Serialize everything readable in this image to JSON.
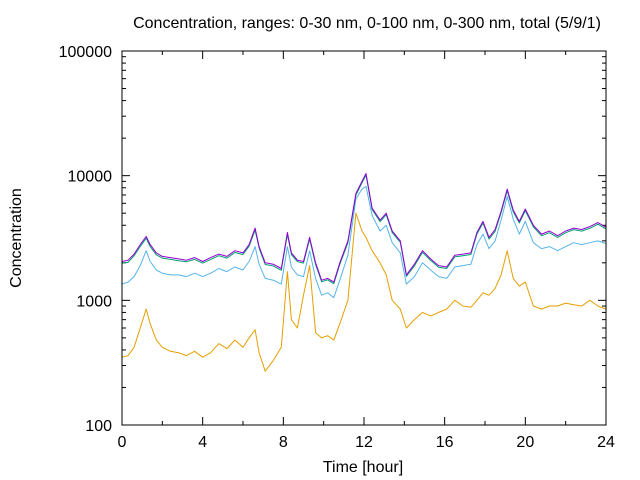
{
  "chart_data": {
    "type": "line",
    "title": "Concentration, ranges: 0-30 nm, 0-100 nm, 0-300 nm, total (5/9/1)",
    "xlabel": "Time [hour]",
    "ylabel": "Concentration",
    "xlim": [
      0,
      24
    ],
    "ylim": [
      100,
      100000
    ],
    "yscale": "log",
    "grid": false,
    "legend": "none",
    "x_ticks": [
      "0",
      "4",
      "8",
      "12",
      "16",
      "20",
      "24"
    ],
    "y_ticks": [
      "100",
      "1000",
      "10000",
      "100000"
    ],
    "x": [
      0,
      0.3,
      0.6,
      0.9,
      1.2,
      1.4,
      1.7,
      2.0,
      2.4,
      2.8,
      3.2,
      3.6,
      4.0,
      4.4,
      4.8,
      5.2,
      5.6,
      6.0,
      6.3,
      6.6,
      6.8,
      7.1,
      7.5,
      7.9,
      8.2,
      8.4,
      8.7,
      9.0,
      9.3,
      9.6,
      9.9,
      10.2,
      10.5,
      10.8,
      11.2,
      11.6,
      11.9,
      12.1,
      12.4,
      12.8,
      13.1,
      13.4,
      13.8,
      14.1,
      14.5,
      14.9,
      15.3,
      15.7,
      16.1,
      16.5,
      16.9,
      17.3,
      17.6,
      17.9,
      18.2,
      18.5,
      18.8,
      19.1,
      19.4,
      19.7,
      20.0,
      20.4,
      20.8,
      21.2,
      21.6,
      22.0,
      22.4,
      22.8,
      23.2,
      23.6,
      24.0
    ],
    "series": [
      {
        "color": "#9400d3",
        "values": [
          2050,
          2100,
          2350,
          2800,
          3250,
          2800,
          2400,
          2250,
          2200,
          2150,
          2100,
          2200,
          2050,
          2200,
          2350,
          2250,
          2500,
          2400,
          2800,
          3800,
          2700,
          2000,
          1950,
          1800,
          3500,
          2400,
          2100,
          2050,
          3200,
          2000,
          1450,
          1500,
          1400,
          2000,
          3000,
          7200,
          9000,
          10400,
          5500,
          4400,
          5000,
          3600,
          3000,
          1600,
          1950,
          2500,
          2150,
          1900,
          1850,
          2300,
          2350,
          2400,
          3500,
          4300,
          3200,
          3700,
          5200,
          7800,
          5300,
          4300,
          5400,
          4000,
          3400,
          3600,
          3300,
          3600,
          3800,
          3700,
          3900,
          4200,
          3850
        ]
      },
      {
        "color": "#009e73",
        "values": [
          1980,
          2020,
          2280,
          2700,
          3150,
          2700,
          2320,
          2180,
          2130,
          2080,
          2040,
          2130,
          1990,
          2130,
          2280,
          2180,
          2420,
          2330,
          2720,
          3650,
          2620,
          1940,
          1890,
          1740,
          3380,
          2330,
          2040,
          1990,
          3100,
          1940,
          1410,
          1460,
          1360,
          1940,
          2900,
          7000,
          8750,
          10100,
          5350,
          4280,
          4860,
          3500,
          2920,
          1560,
          1890,
          2430,
          2090,
          1840,
          1800,
          2230,
          2280,
          2330,
          3400,
          4170,
          3100,
          3580,
          5050,
          7570,
          5140,
          4170,
          5240,
          3880,
          3300,
          3490,
          3200,
          3490,
          3690,
          3590,
          3780,
          4080,
          3740
        ]
      },
      {
        "color": "#56b4e9",
        "values": [
          1350,
          1400,
          1550,
          1900,
          2500,
          2050,
          1750,
          1650,
          1600,
          1600,
          1550,
          1650,
          1550,
          1650,
          1800,
          1700,
          1850,
          1750,
          2050,
          2700,
          1950,
          1500,
          1450,
          1350,
          2700,
          1850,
          1600,
          1550,
          2500,
          1500,
          1100,
          1150,
          1050,
          1450,
          2300,
          6500,
          7800,
          8200,
          4800,
          3600,
          4000,
          2900,
          2400,
          1350,
          1550,
          2000,
          1750,
          1550,
          1500,
          1850,
          1900,
          1950,
          2800,
          3400,
          2600,
          3000,
          4400,
          6800,
          4500,
          3400,
          4300,
          2900,
          2600,
          2700,
          2500,
          2700,
          2900,
          2800,
          2900,
          3000,
          2850
        ]
      },
      {
        "color": "#e69f00",
        "values": [
          350,
          360,
          420,
          600,
          850,
          650,
          480,
          420,
          390,
          380,
          360,
          390,
          350,
          380,
          450,
          410,
          480,
          420,
          500,
          580,
          380,
          270,
          330,
          420,
          1700,
          700,
          600,
          1100,
          1900,
          550,
          500,
          520,
          480,
          650,
          1000,
          5000,
          3600,
          3200,
          2500,
          2000,
          1600,
          1000,
          850,
          600,
          700,
          800,
          750,
          800,
          850,
          1000,
          900,
          880,
          1000,
          1150,
          1100,
          1250,
          1600,
          2500,
          1500,
          1300,
          1400,
          900,
          850,
          900,
          900,
          950,
          920,
          900,
          1000,
          900,
          850
        ]
      }
    ]
  }
}
